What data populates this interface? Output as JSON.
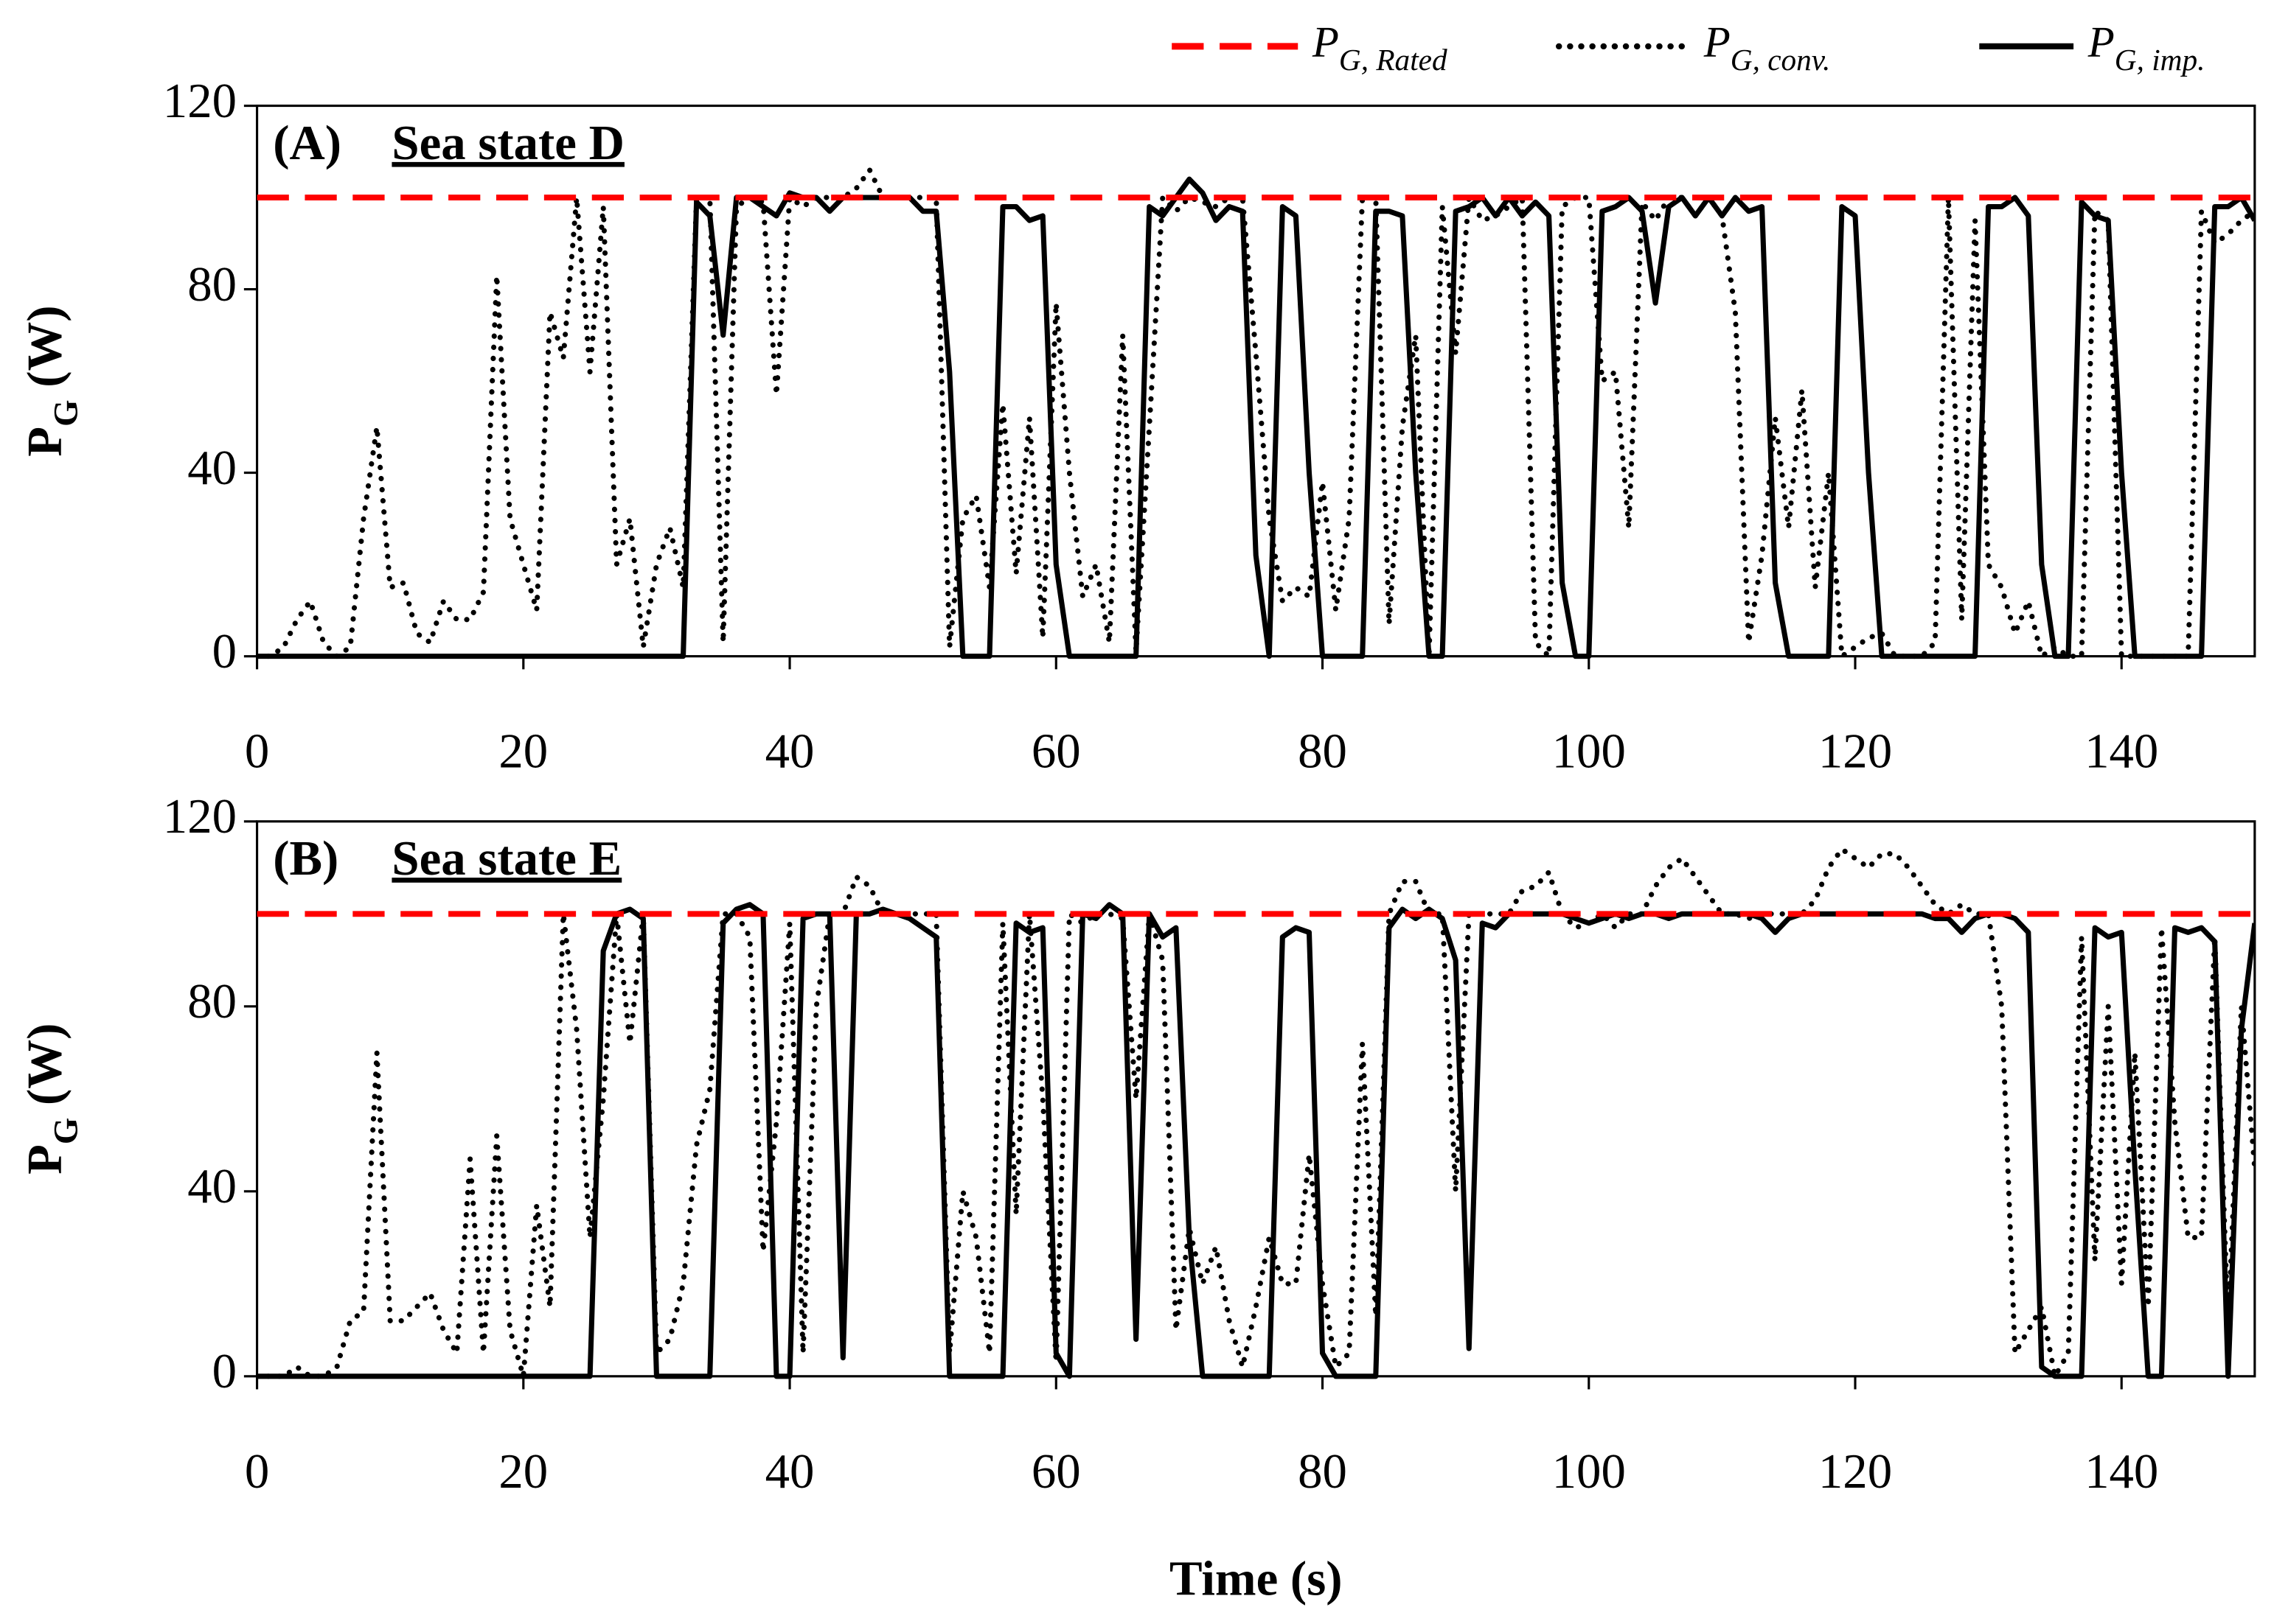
{
  "chart_data": [
    {
      "type": "line",
      "panel": "(A)",
      "title": "Sea state D",
      "ylabel": "PG (W)",
      "xlim": [
        0,
        150
      ],
      "xticks": [
        0,
        20,
        40,
        60,
        80,
        100,
        120,
        140
      ],
      "ylim": [
        0,
        120
      ],
      "yticks": [
        0,
        40,
        80,
        120
      ],
      "x": [
        0,
        1,
        2,
        3,
        4,
        5,
        6,
        7,
        8,
        9,
        10,
        11,
        12,
        13,
        14,
        15,
        16,
        17,
        18,
        19,
        20,
        21,
        22,
        23,
        24,
        25,
        26,
        27,
        28,
        29,
        30,
        31,
        32,
        33,
        34,
        35,
        36,
        37,
        38,
        39,
        40,
        41,
        42,
        43,
        44,
        45,
        46,
        47,
        48,
        49,
        50,
        51,
        52,
        53,
        54,
        55,
        56,
        57,
        58,
        59,
        60,
        61,
        62,
        63,
        64,
        65,
        66,
        67,
        68,
        69,
        70,
        71,
        72,
        73,
        74,
        75,
        76,
        77,
        78,
        79,
        80,
        81,
        82,
        83,
        84,
        85,
        86,
        87,
        88,
        89,
        90,
        91,
        92,
        93,
        94,
        95,
        96,
        97,
        98,
        99,
        100,
        101,
        102,
        103,
        104,
        105,
        106,
        107,
        108,
        109,
        110,
        111,
        112,
        113,
        114,
        115,
        116,
        117,
        118,
        119,
        120,
        121,
        122,
        123,
        124,
        125,
        126,
        127,
        128,
        129,
        130,
        131,
        132,
        133,
        134,
        135,
        136,
        137,
        138,
        139,
        140,
        141,
        142,
        143,
        144,
        145,
        146,
        147,
        148,
        149,
        150
      ],
      "series": [
        {
          "name": "PG, Rated",
          "color": "#ff0000",
          "style": "dashed",
          "x": [
            0,
            150
          ],
          "values": [
            100,
            100
          ]
        },
        {
          "name": "PG, conv.",
          "color": "#000000",
          "style": "dotted",
          "values": [
            0,
            0,
            2,
            8,
            12,
            3,
            0,
            2,
            30,
            50,
            15,
            16,
            5,
            3,
            12,
            8,
            8,
            14,
            83,
            30,
            20,
            10,
            75,
            65,
            100,
            62,
            98,
            20,
            30,
            2,
            20,
            28,
            15,
            100,
            100,
            3,
            98,
            100,
            99,
            57,
            100,
            98,
            100,
            100,
            100,
            102,
            106,
            100,
            100,
            100,
            100,
            100,
            2,
            30,
            35,
            15,
            55,
            18,
            52,
            4,
            77,
            40,
            13,
            20,
            3,
            70,
            1,
            50,
            100,
            97,
            100,
            99,
            98,
            100,
            100,
            66,
            30,
            12,
            15,
            13,
            38,
            10,
            30,
            100,
            100,
            7,
            50,
            70,
            0,
            98,
            66,
            100,
            95,
            96,
            98,
            100,
            3,
            0,
            98,
            100,
            100,
            60,
            62,
            28,
            99,
            95,
            100,
            100,
            96,
            100,
            96,
            75,
            3,
            22,
            52,
            28,
            58,
            15,
            40,
            0,
            2,
            4,
            5,
            0,
            0,
            0,
            3,
            100,
            8,
            95,
            20,
            15,
            5,
            12,
            0,
            2,
            0,
            0,
            97,
            95,
            0,
            0,
            0,
            0,
            0,
            0,
            97,
            90,
            92,
            95,
            97
          ]
        },
        {
          "name": "PG, imp.",
          "color": "#000000",
          "style": "solid",
          "values": [
            0,
            0,
            0,
            0,
            0,
            0,
            0,
            0,
            0,
            0,
            0,
            0,
            0,
            0,
            0,
            0,
            0,
            0,
            0,
            0,
            0,
            0,
            0,
            0,
            0,
            0,
            0,
            0,
            0,
            0,
            0,
            0,
            0,
            99,
            96,
            70,
            100,
            100,
            98,
            96,
            101,
            100,
            100,
            97,
            100,
            100,
            100,
            100,
            100,
            100,
            97,
            97,
            62,
            0,
            0,
            0,
            98,
            98,
            95,
            96,
            20,
            0,
            0,
            0,
            0,
            0,
            0,
            98,
            96,
            100,
            104,
            101,
            95,
            98,
            97,
            22,
            0,
            98,
            96,
            40,
            0,
            0,
            0,
            0,
            97,
            97,
            96,
            40,
            0,
            0,
            97,
            98,
            100,
            96,
            100,
            96,
            99,
            96,
            16,
            0,
            0,
            97,
            98,
            100,
            97,
            77,
            98,
            100,
            96,
            100,
            96,
            100,
            97,
            98,
            16,
            0,
            0,
            0,
            0,
            98,
            96,
            40,
            0,
            0,
            0,
            0,
            0,
            0,
            0,
            0,
            98,
            98,
            100,
            96,
            20,
            0,
            0,
            99,
            96,
            95,
            40,
            0,
            0,
            0,
            0,
            0,
            0,
            98,
            98,
            100,
            95
          ]
        }
      ]
    },
    {
      "type": "line",
      "panel": "(B)",
      "title": "Sea state E",
      "ylabel": "PG (W)",
      "xlabel": "Time (s)",
      "xlim": [
        0,
        150
      ],
      "xticks": [
        0,
        20,
        40,
        60,
        80,
        100,
        120,
        140
      ],
      "ylim": [
        0,
        120
      ],
      "yticks": [
        0,
        40,
        80,
        120
      ],
      "x": [
        0,
        1,
        2,
        3,
        4,
        5,
        6,
        7,
        8,
        9,
        10,
        11,
        12,
        13,
        14,
        15,
        16,
        17,
        18,
        19,
        20,
        21,
        22,
        23,
        24,
        25,
        26,
        27,
        28,
        29,
        30,
        31,
        32,
        33,
        34,
        35,
        36,
        37,
        38,
        39,
        40,
        41,
        42,
        43,
        44,
        45,
        46,
        47,
        48,
        49,
        50,
        51,
        52,
        53,
        54,
        55,
        56,
        57,
        58,
        59,
        60,
        61,
        62,
        63,
        64,
        65,
        66,
        67,
        68,
        69,
        70,
        71,
        72,
        73,
        74,
        75,
        76,
        77,
        78,
        79,
        80,
        81,
        82,
        83,
        84,
        85,
        86,
        87,
        88,
        89,
        90,
        91,
        92,
        93,
        94,
        95,
        96,
        97,
        98,
        99,
        100,
        101,
        102,
        103,
        104,
        105,
        106,
        107,
        108,
        109,
        110,
        111,
        112,
        113,
        114,
        115,
        116,
        117,
        118,
        119,
        120,
        121,
        122,
        123,
        124,
        125,
        126,
        127,
        128,
        129,
        130,
        131,
        132,
        133,
        134,
        135,
        136,
        137,
        138,
        139,
        140,
        141,
        142,
        143,
        144,
        145,
        146,
        147,
        148,
        149,
        150
      ],
      "series": [
        {
          "color": "#ff0000",
          "style": "dashed",
          "x": [
            0,
            150
          ],
          "values": [
            100,
            100
          ]
        },
        {
          "color": "#000000",
          "style": "dotted",
          "values": [
            0,
            0,
            0,
            2,
            0,
            0,
            2,
            12,
            14,
            70,
            12,
            12,
            15,
            18,
            10,
            5,
            47,
            5,
            52,
            10,
            0,
            37,
            15,
            100,
            75,
            30,
            60,
            100,
            72,
            100,
            5,
            8,
            20,
            50,
            62,
            100,
            100,
            95,
            27,
            55,
            98,
            5,
            80,
            100,
            100,
            108,
            106,
            100,
            100,
            100,
            100,
            100,
            5,
            40,
            30,
            5,
            98,
            35,
            100,
            60,
            3,
            100,
            98,
            100,
            100,
            99,
            60,
            100,
            90,
            10,
            32,
            20,
            28,
            12,
            2,
            15,
            30,
            20,
            20,
            48,
            20,
            2,
            5,
            72,
            13,
            100,
            107,
            107,
            100,
            100,
            40,
            100,
            100,
            100,
            100,
            105,
            106,
            109,
            100,
            97,
            98,
            100,
            97,
            100,
            100,
            106,
            110,
            112,
            108,
            104,
            100,
            100,
            99,
            100,
            100,
            100,
            100,
            103,
            110,
            114,
            112,
            110,
            113,
            113,
            110,
            106,
            102,
            100,
            102,
            100,
            100,
            80,
            5,
            10,
            15,
            0,
            5,
            95,
            25,
            80,
            20,
            70,
            15,
            97,
            55,
            30,
            30,
            95,
            10,
            80,
            45
          ]
        },
        {
          "color": "#000000",
          "style": "solid",
          "values": [
            0,
            0,
            0,
            0,
            0,
            0,
            0,
            0,
            0,
            0,
            0,
            0,
            0,
            0,
            0,
            0,
            0,
            0,
            0,
            0,
            0,
            0,
            0,
            0,
            0,
            0,
            92,
            100,
            101,
            99,
            0,
            0,
            0,
            0,
            0,
            98,
            101,
            102,
            100,
            0,
            0,
            99,
            100,
            100,
            4,
            100,
            100,
            101,
            100,
            99,
            97,
            95,
            0,
            0,
            0,
            0,
            0,
            98,
            96,
            97,
            5,
            0,
            100,
            99,
            102,
            100,
            8,
            100,
            95,
            97,
            30,
            0,
            0,
            0,
            0,
            0,
            0,
            95,
            97,
            96,
            5,
            0,
            0,
            0,
            0,
            97,
            101,
            99,
            101,
            99,
            90,
            6,
            98,
            97,
            100,
            100,
            100,
            100,
            100,
            99,
            98,
            99,
            100,
            99,
            100,
            100,
            99,
            100,
            100,
            100,
            100,
            100,
            100,
            99,
            96,
            99,
            100,
            100,
            100,
            100,
            100,
            100,
            100,
            100,
            100,
            100,
            99,
            99,
            96,
            99,
            100,
            100,
            99,
            96,
            2,
            0,
            0,
            0,
            97,
            95,
            96,
            45,
            0,
            0,
            97,
            96,
            97,
            94,
            0,
            75,
            98
          ]
        }
      ]
    }
  ]
}
